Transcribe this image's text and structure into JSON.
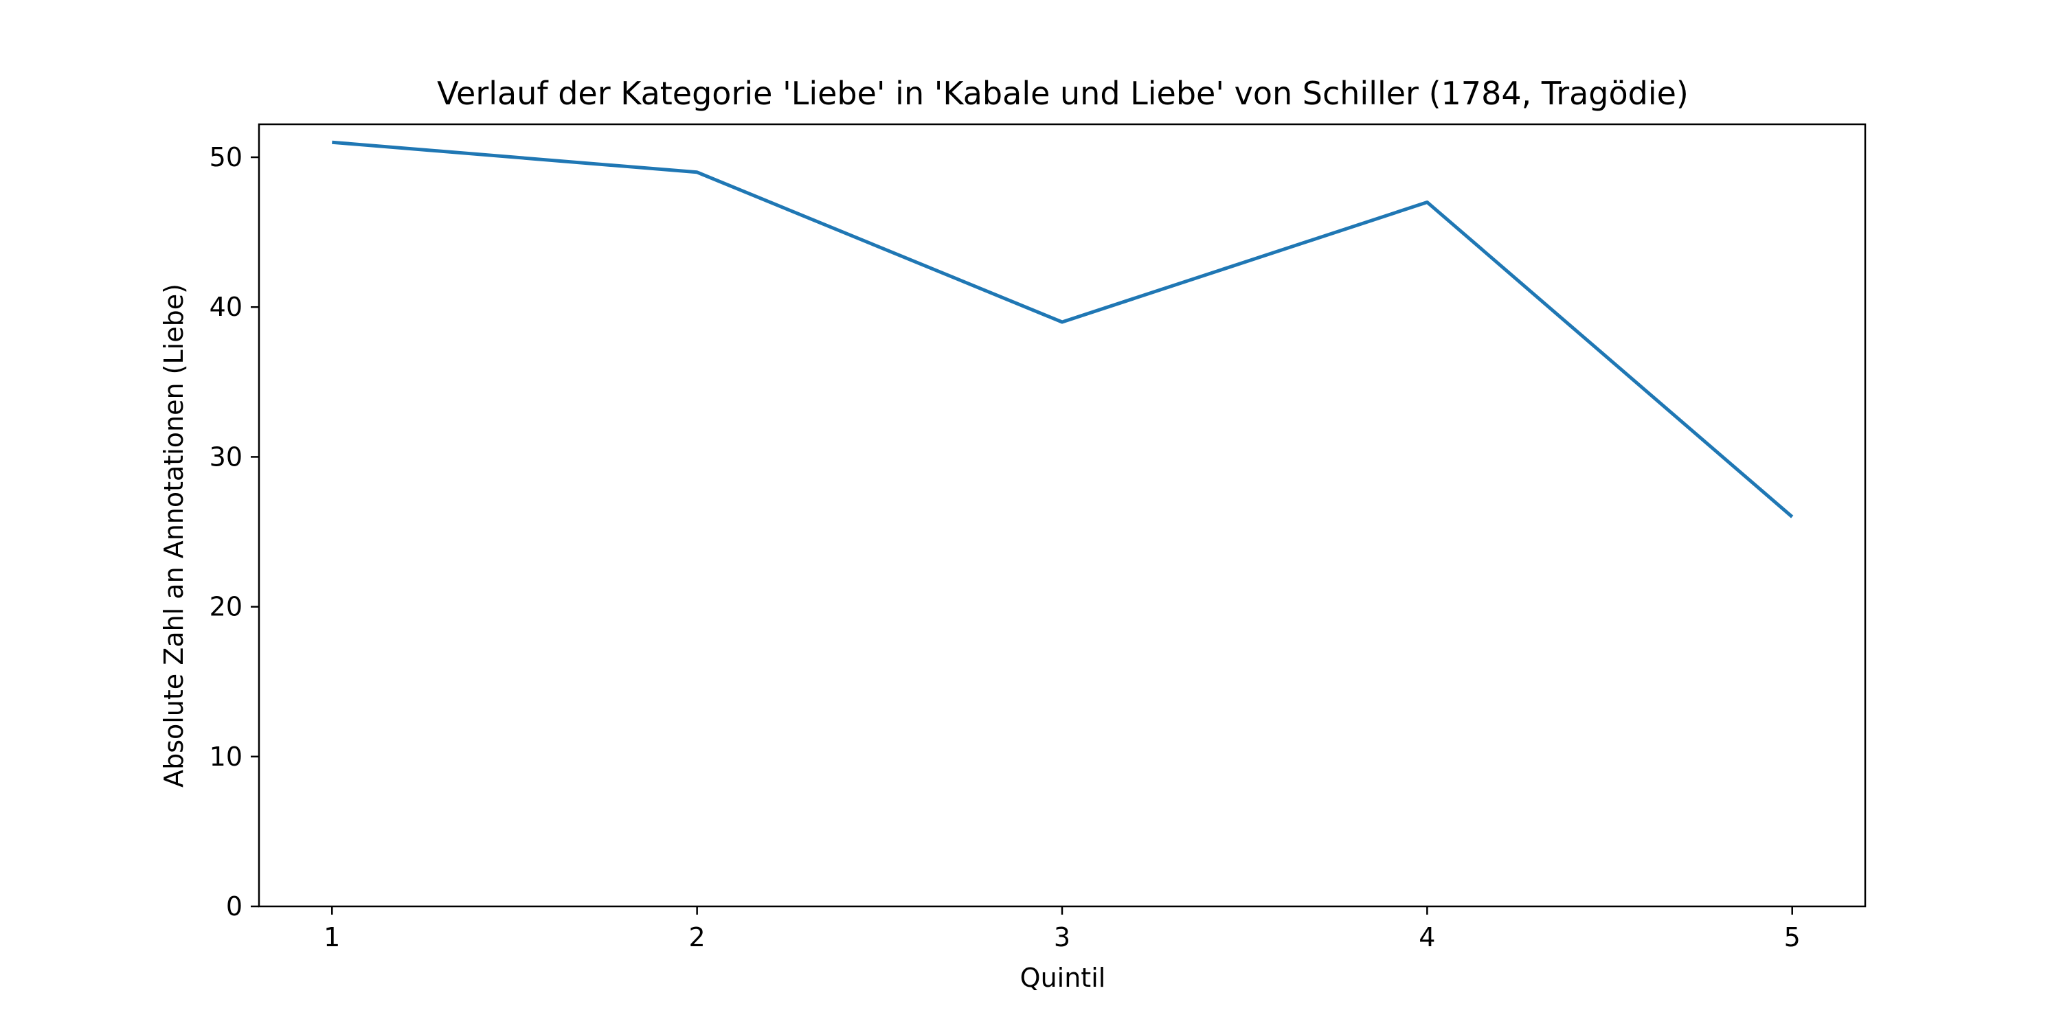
{
  "chart_data": {
    "type": "line",
    "title": "Verlauf der Kategorie 'Liebe' in 'Kabale und Liebe' von Schiller (1784, Tragödie)",
    "xlabel": "Quintil",
    "ylabel": "Absolute Zahl an Annotationen (Liebe)",
    "x": [
      1,
      2,
      3,
      4,
      5
    ],
    "series": [
      {
        "values": [
          51,
          49,
          39,
          47,
          26
        ]
      }
    ],
    "xticks": [
      "1",
      "2",
      "3",
      "4",
      "5"
    ],
    "yticks": [
      "0",
      "10",
      "20",
      "30",
      "40",
      "50"
    ],
    "xlim": [
      0.8,
      5.2
    ],
    "ylim": [
      0,
      52.2
    ],
    "grid": false,
    "colors": {
      "line": "#1f77b4",
      "axes": "#000000"
    }
  }
}
